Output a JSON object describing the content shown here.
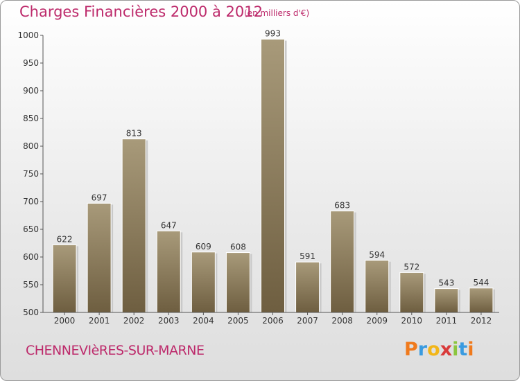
{
  "header": {
    "title": "Charges Financières 2000 à 2012",
    "unit_note": "(en milliers d'€)"
  },
  "footer": {
    "commune": "CHENNEVIèRES-SUR-MARNE",
    "logo": [
      "P",
      "r",
      "o",
      "x",
      "i",
      "t",
      "i"
    ]
  },
  "colors": {
    "title": "#bd2a6b",
    "bar_top": "#a89a7a",
    "bar_bottom": "#6e5e40",
    "axis": "#555555"
  },
  "chart_data": {
    "type": "bar",
    "categories": [
      "2000",
      "2001",
      "2002",
      "2003",
      "2004",
      "2005",
      "2006",
      "2007",
      "2008",
      "2009",
      "2010",
      "2011",
      "2012"
    ],
    "values": [
      622,
      697,
      813,
      647,
      609,
      608,
      993,
      591,
      683,
      594,
      572,
      543,
      544
    ],
    "data_labels": [
      "622",
      "697",
      "813",
      "647",
      "609",
      "608",
      "993",
      "591",
      "683",
      "594",
      "572",
      "543",
      "544"
    ],
    "yticks": [
      500,
      550,
      600,
      650,
      700,
      750,
      800,
      850,
      900,
      950,
      1000
    ],
    "ytick_labels": [
      "500",
      "550",
      "600",
      "650",
      "700",
      "750",
      "800",
      "850",
      "900",
      "950",
      "1000"
    ],
    "ylim": [
      500,
      1000
    ],
    "grid": false
  }
}
